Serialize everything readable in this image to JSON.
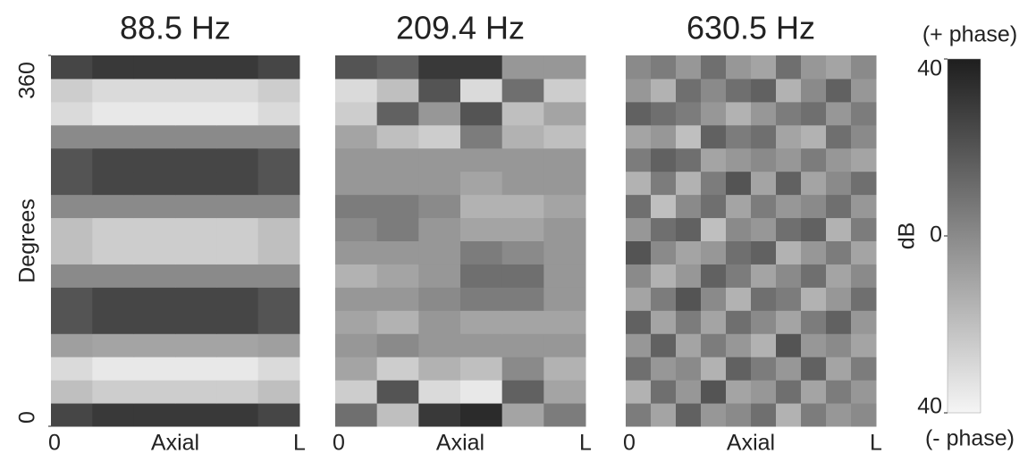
{
  "chart_data": [
    {
      "type": "heatmap",
      "title": "88.5 Hz",
      "xlabel": "Axial",
      "xtick_labels": [
        "0",
        "L"
      ],
      "ylabel": "Degrees",
      "ylim": [
        0,
        360
      ],
      "yticks": [
        0,
        360
      ],
      "zlim": [
        -40,
        40
      ],
      "z": [
        [
          25,
          30,
          30,
          30,
          30,
          25
        ],
        [
          -20,
          -25,
          -25,
          -25,
          -25,
          -20
        ],
        [
          -30,
          -35,
          -35,
          -35,
          -35,
          -30
        ],
        [
          -8,
          -10,
          -10,
          -10,
          -10,
          -8
        ],
        [
          20,
          25,
          25,
          25,
          25,
          20
        ],
        [
          20,
          25,
          25,
          25,
          25,
          20
        ],
        [
          0,
          0,
          0,
          0,
          0,
          0
        ],
        [
          -20,
          -25,
          -25,
          -25,
          -25,
          -20
        ],
        [
          -20,
          -25,
          -25,
          -25,
          -25,
          -20
        ],
        [
          0,
          0,
          0,
          0,
          0,
          0
        ],
        [
          20,
          25,
          25,
          25,
          25,
          20
        ],
        [
          20,
          25,
          25,
          25,
          25,
          20
        ],
        [
          0,
          0,
          0,
          0,
          0,
          0
        ],
        [
          -30,
          -35,
          -35,
          -35,
          -35,
          -30
        ],
        [
          -25,
          -30,
          -30,
          -30,
          -30,
          -25
        ],
        [
          25,
          30,
          30,
          30,
          30,
          25
        ]
      ]
    },
    {
      "type": "heatmap",
      "title": "209.4 Hz",
      "xlabel": "Axial",
      "xtick_labels": [
        "0",
        "L"
      ],
      "zlim": [
        -40,
        40
      ],
      "z": [
        [
          10,
          -20,
          30,
          35,
          -10,
          5
        ],
        [
          -25,
          20,
          -30,
          -35,
          15,
          -10
        ],
        [
          -10,
          -25,
          -15,
          -20,
          0,
          -15
        ],
        [
          -5,
          0,
          -5,
          -5,
          -5,
          -5
        ],
        [
          -10,
          -15,
          -5,
          -10,
          -10,
          -10
        ],
        [
          -5,
          -5,
          0,
          5,
          5,
          -5
        ],
        [
          -15,
          -10,
          -5,
          10,
          10,
          -5
        ],
        [
          -5,
          -5,
          -5,
          5,
          0,
          -5
        ],
        [
          0,
          5,
          -5,
          -10,
          -10,
          -5
        ],
        [
          5,
          5,
          0,
          -15,
          -15,
          -10
        ],
        [
          -5,
          -5,
          -5,
          -10,
          -5,
          -5
        ],
        [
          -5,
          -5,
          -5,
          -5,
          -5,
          -5
        ],
        [
          -10,
          -20,
          -25,
          5,
          -15,
          -20
        ],
        [
          -25,
          15,
          -5,
          20,
          -20,
          -10
        ],
        [
          -30,
          -20,
          20,
          -30,
          10,
          -25
        ],
        [
          20,
          15,
          30,
          30,
          -5,
          -5
        ]
      ]
    },
    {
      "type": "heatmap",
      "title": "630.5 Hz",
      "xlabel": "Axial",
      "xtick_labels": [
        "0",
        "L"
      ],
      "zlim": [
        -40,
        40
      ],
      "colorbar": {
        "label": "dB",
        "top_label": "(+ phase)",
        "bottom_label": "(- phase)",
        "ticks": [
          {
            "value": -40,
            "label": "40"
          },
          0,
          40
        ]
      },
      "z": [
        [
          5,
          -10,
          15,
          -5,
          0,
          10,
          -15,
          5,
          -5,
          0
        ],
        [
          -15,
          10,
          -5,
          20,
          -10,
          -5,
          10,
          -10,
          5,
          -5
        ],
        [
          10,
          -5,
          0,
          -15,
          15,
          5,
          -5,
          15,
          -10,
          5
        ],
        [
          -5,
          15,
          -10,
          5,
          -5,
          -15,
          20,
          -5,
          0,
          -10
        ],
        [
          15,
          -10,
          5,
          -10,
          10,
          0,
          -10,
          5,
          15,
          -5
        ],
        [
          -10,
          5,
          20,
          0,
          -15,
          10,
          5,
          -15,
          -5,
          10
        ],
        [
          0,
          -15,
          -5,
          15,
          5,
          -10,
          0,
          10,
          -10,
          0
        ],
        [
          20,
          0,
          -10,
          -5,
          10,
          15,
          -15,
          -5,
          5,
          -10
        ],
        [
          -5,
          10,
          15,
          -20,
          0,
          -5,
          10,
          15,
          -15,
          5
        ],
        [
          10,
          -20,
          0,
          10,
          -10,
          5,
          -5,
          0,
          10,
          -5
        ],
        [
          -15,
          5,
          -15,
          5,
          20,
          -10,
          15,
          -10,
          0,
          10
        ],
        [
          5,
          15,
          10,
          -10,
          -5,
          0,
          -5,
          5,
          -5,
          -10
        ],
        [
          -10,
          -5,
          -20,
          15,
          5,
          10,
          -10,
          -15,
          10,
          0
        ],
        [
          15,
          10,
          5,
          -5,
          -15,
          -5,
          5,
          10,
          -5,
          5
        ],
        [
          -5,
          -15,
          10,
          0,
          10,
          15,
          -15,
          0,
          15,
          -5
        ],
        [
          0,
          5,
          -5,
          10,
          -5,
          -10,
          10,
          -5,
          -10,
          0
        ]
      ]
    }
  ]
}
